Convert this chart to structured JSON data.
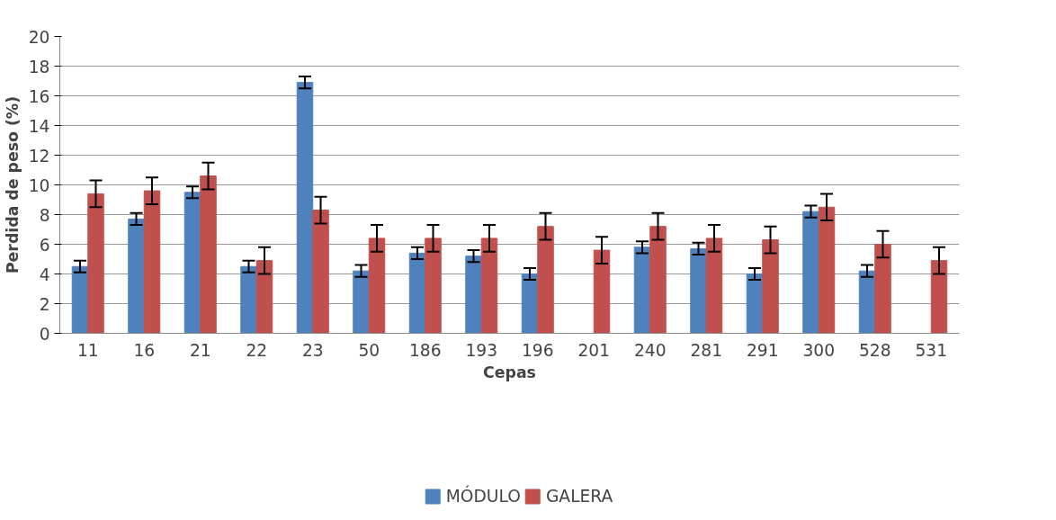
{
  "chart_data": {
    "type": "bar",
    "xlabel": "Cepas",
    "ylabel": "Perdida de peso (%)",
    "categories": [
      "11",
      "16",
      "21",
      "22",
      "23",
      "50",
      "186",
      "193",
      "196",
      "201",
      "240",
      "281",
      "291",
      "300",
      "528",
      "531"
    ],
    "series": [
      {
        "name": "MÓDULO",
        "color": "#4f81bd",
        "values": [
          4.5,
          7.7,
          9.5,
          4.5,
          16.9,
          4.2,
          5.4,
          5.2,
          4.0,
          null,
          5.8,
          5.7,
          4.0,
          8.2,
          4.2,
          null
        ],
        "errors": [
          0.4,
          0.4,
          0.4,
          0.4,
          0.4,
          0.4,
          0.4,
          0.4,
          0.4,
          null,
          0.4,
          0.4,
          0.4,
          0.4,
          0.4,
          null
        ]
      },
      {
        "name": "GALERA",
        "color": "#c0504d",
        "values": [
          9.4,
          9.6,
          10.6,
          4.9,
          8.3,
          6.4,
          6.4,
          6.4,
          7.2,
          5.6,
          7.2,
          6.4,
          6.3,
          8.5,
          6.0,
          4.9
        ],
        "errors": [
          0.9,
          0.9,
          0.9,
          0.9,
          0.9,
          0.9,
          0.9,
          0.9,
          0.9,
          0.9,
          0.9,
          0.9,
          0.9,
          0.9,
          0.9,
          0.9
        ]
      }
    ],
    "ylim": [
      0,
      20
    ],
    "yticks": [
      0,
      2,
      4,
      6,
      8,
      10,
      12,
      14,
      16,
      18,
      20
    ],
    "grid": "y",
    "legend": "bottom"
  }
}
